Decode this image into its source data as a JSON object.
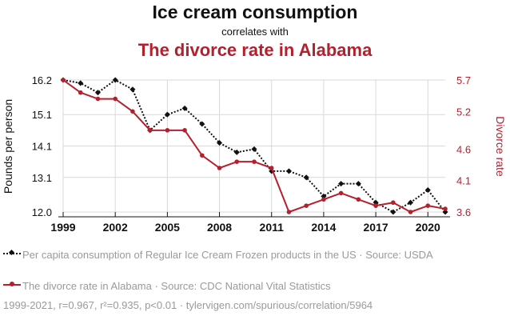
{
  "header": {
    "title": "Ice cream consumption",
    "subtitle": "correlates with",
    "title2": "The divorce rate in Alabama"
  },
  "colors": {
    "series1": "#111111",
    "series2": "#b5202e",
    "grid": "#d9d9d9"
  },
  "chart_data": {
    "type": "line",
    "x": [
      1999,
      2000,
      2001,
      2002,
      2003,
      2004,
      2005,
      2006,
      2007,
      2008,
      2009,
      2010,
      2011,
      2012,
      2013,
      2014,
      2015,
      2016,
      2017,
      2018,
      2019,
      2020,
      2021
    ],
    "xticks": [
      1999,
      2002,
      2005,
      2008,
      2011,
      2014,
      2017,
      2020
    ],
    "xlim": [
      1999,
      2021
    ],
    "left_axis": {
      "label": "Pounds per person",
      "ylim": [
        12.0,
        16.2
      ],
      "ticks": [
        12.0,
        13.1,
        14.1,
        15.1,
        16.2
      ],
      "tick_labels": [
        "12.0",
        "13.1",
        "14.1",
        "15.1",
        "16.2"
      ]
    },
    "right_axis": {
      "label": "Divorce rate",
      "ylim": [
        3.6,
        5.7
      ],
      "ticks": [
        3.6,
        4.1,
        4.6,
        5.2,
        5.7
      ],
      "tick_labels": [
        "3.6",
        "4.1",
        "4.6",
        "5.2",
        "5.7"
      ]
    },
    "series": [
      {
        "name": "Per capita consumption of Regular Ice Cream Frozen products in the US",
        "axis": "left",
        "style": "dotted",
        "values": [
          16.2,
          16.1,
          15.8,
          16.2,
          15.9,
          14.6,
          15.1,
          15.3,
          14.8,
          14.2,
          13.9,
          14.0,
          13.3,
          13.3,
          13.1,
          12.5,
          12.9,
          12.9,
          12.3,
          12.0,
          12.3,
          12.7,
          12.0
        ]
      },
      {
        "name": "The divorce rate in Alabama",
        "axis": "right",
        "style": "solid",
        "values": [
          5.7,
          5.5,
          5.4,
          5.4,
          5.2,
          4.9,
          4.9,
          4.9,
          4.5,
          4.3,
          4.4,
          4.4,
          4.3,
          3.6,
          3.7,
          3.8,
          3.9,
          3.8,
          3.7,
          3.75,
          3.6,
          3.7,
          3.65
        ]
      }
    ]
  },
  "legend": {
    "item1": "Per capita consumption of Regular Ice Cream Frozen products in the US · Source: USDA",
    "item2": "The divorce rate in Alabama · Source: CDC National Vital Statistics"
  },
  "stats": "1999-2021, r=0.967, r²=0.935, p<0.01 · tylervigen.com/spurious/correlation/5964"
}
